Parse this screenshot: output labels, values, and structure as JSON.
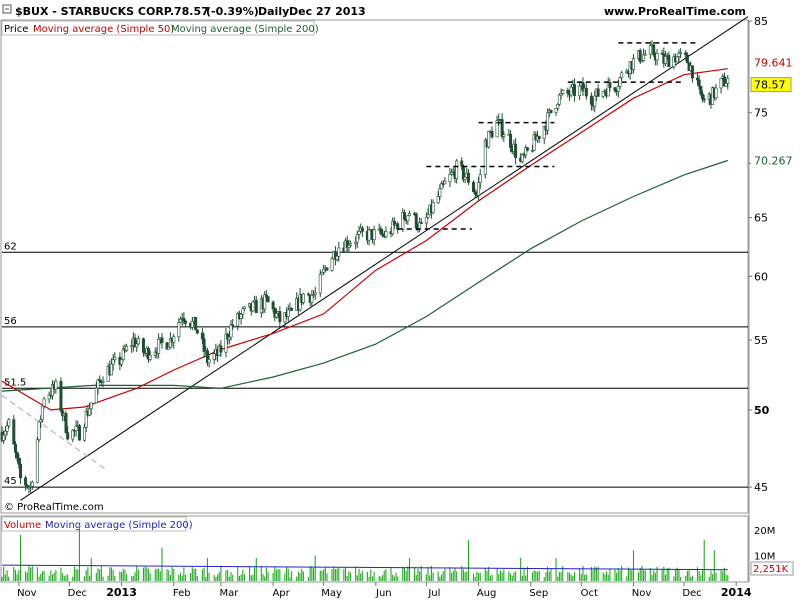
{
  "header": {
    "symbol": "$BUX - STARBUCKS CORP.",
    "last": "78.57",
    "change": "(-0.39%)",
    "period": "Daily",
    "date": "Dec 27 2013",
    "site": "www.ProRealTime.com",
    "copyright": "© ProRealTime.com"
  },
  "legend": {
    "price": "Price",
    "ma50": "Moving average (Simple 50)",
    "ma200": "Moving average (Simple 200)",
    "volume": "Volume",
    "vol_ma": "Moving average (Simple 200)"
  },
  "colors": {
    "ma50": "#cc0000",
    "ma200": "#1f5f35",
    "volume": "#22aa22",
    "vol_ma": "#2222cc",
    "candle_up": "#ffffff",
    "candle_down": "#1f4f2f"
  },
  "chart_data": {
    "type": "candlestick",
    "y_axis": {
      "scale": "log",
      "range": [
        43.5,
        85
      ],
      "ticks": [
        "85",
        "75",
        "70",
        "65",
        "60",
        "55",
        "50",
        "45"
      ],
      "tick_values": [
        85,
        75,
        70,
        65,
        60,
        55,
        50,
        45
      ]
    },
    "x_axis": {
      "labels": [
        "Nov",
        "Dec",
        "2013",
        "Feb",
        "Mar",
        "Apr",
        "May",
        "Jun",
        "Jul",
        "Aug",
        "Sep",
        "Oct",
        "Nov",
        "Dec",
        "2014"
      ],
      "dates": [
        "2012-11-01",
        "2012-12-01",
        "2013-01-01",
        "2013-02-01",
        "2013-03-01",
        "2013-04-01",
        "2013-05-01",
        "2013-06-01",
        "2013-07-01",
        "2013-08-01",
        "2013-09-01",
        "2013-10-01",
        "2013-11-01",
        "2013-12-01",
        "2014-01-01"
      ],
      "range": [
        "2012-10-22",
        "2014-01-08"
      ]
    },
    "price_path": [
      [
        "2012-10-22",
        48.5
      ],
      [
        "2012-10-26",
        49
      ],
      [
        "2012-11-02",
        45.5
      ],
      [
        "2012-11-08",
        45
      ],
      [
        "2012-11-16",
        51
      ],
      [
        "2012-11-23",
        51.5
      ],
      [
        "2012-11-30",
        48.5
      ],
      [
        "2012-12-07",
        48.5
      ],
      [
        "2012-12-14",
        50.5
      ],
      [
        "2012-12-21",
        52.5
      ],
      [
        "2012-12-31",
        53.5
      ],
      [
        "2013-01-08",
        55
      ],
      [
        "2013-01-15",
        54
      ],
      [
        "2013-01-22",
        54.5
      ],
      [
        "2013-01-30",
        55
      ],
      [
        "2013-02-06",
        57
      ],
      [
        "2013-02-14",
        56
      ],
      [
        "2013-02-21",
        53.5
      ],
      [
        "2013-02-28",
        54
      ],
      [
        "2013-03-07",
        56
      ],
      [
        "2013-03-14",
        57
      ],
      [
        "2013-03-21",
        57.5
      ],
      [
        "2013-03-28",
        58
      ],
      [
        "2013-04-05",
        56.5
      ],
      [
        "2013-04-12",
        57
      ],
      [
        "2013-04-19",
        58.5
      ],
      [
        "2013-04-26",
        58.5
      ],
      [
        "2013-05-03",
        61
      ],
      [
        "2013-05-10",
        62.5
      ],
      [
        "2013-05-17",
        63
      ],
      [
        "2013-05-24",
        63.5
      ],
      [
        "2013-05-31",
        63.5
      ],
      [
        "2013-06-07",
        63.5
      ],
      [
        "2013-06-14",
        64.5
      ],
      [
        "2013-06-21",
        65.5
      ],
      [
        "2013-06-28",
        64
      ],
      [
        "2013-07-05",
        66
      ],
      [
        "2013-07-12",
        68
      ],
      [
        "2013-07-19",
        69.5
      ],
      [
        "2013-07-26",
        68.5
      ],
      [
        "2013-07-31",
        67
      ],
      [
        "2013-08-05",
        72
      ],
      [
        "2013-08-12",
        74
      ],
      [
        "2013-08-19",
        72.5
      ],
      [
        "2013-08-26",
        70
      ],
      [
        "2013-09-03",
        72
      ],
      [
        "2013-09-10",
        74
      ],
      [
        "2013-09-17",
        76.5
      ],
      [
        "2013-09-24",
        77
      ],
      [
        "2013-10-01",
        77.5
      ],
      [
        "2013-10-08",
        76.5
      ],
      [
        "2013-10-15",
        77.5
      ],
      [
        "2013-10-22",
        78
      ],
      [
        "2013-10-29",
        80
      ],
      [
        "2013-11-05",
        81
      ],
      [
        "2013-11-12",
        81.5
      ],
      [
        "2013-11-19",
        80.5
      ],
      [
        "2013-11-26",
        81
      ],
      [
        "2013-12-03",
        80.5
      ],
      [
        "2013-12-06",
        79.5
      ],
      [
        "2013-12-10",
        77
      ],
      [
        "2013-12-13",
        76.2
      ],
      [
        "2013-12-18",
        76.8
      ],
      [
        "2013-12-23",
        78
      ],
      [
        "2013-12-27",
        78.57
      ]
    ],
    "series": [
      {
        "name": "Moving average (Simple 50)",
        "values": [
          [
            "2012-10-22",
            52
          ],
          [
            "2012-11-20",
            50
          ],
          [
            "2012-12-10",
            50.2
          ],
          [
            "2013-01-10",
            51.5
          ],
          [
            "2013-02-01",
            52.8
          ],
          [
            "2013-03-01",
            54.3
          ],
          [
            "2013-04-01",
            55.5
          ],
          [
            "2013-05-01",
            57
          ],
          [
            "2013-06-01",
            60.5
          ],
          [
            "2013-07-01",
            63
          ],
          [
            "2013-08-01",
            66.5
          ],
          [
            "2013-09-01",
            69.8
          ],
          [
            "2013-10-01",
            73
          ],
          [
            "2013-11-01",
            76.5
          ],
          [
            "2013-12-01",
            79
          ],
          [
            "2013-12-27",
            79.64
          ]
        ]
      },
      {
        "name": "Moving average (Simple 200)",
        "values": [
          [
            "2012-10-22",
            51.3
          ],
          [
            "2012-12-15",
            51.7
          ],
          [
            "2013-02-01",
            51.7
          ],
          [
            "2013-03-01",
            51.5
          ],
          [
            "2013-04-01",
            52.3
          ],
          [
            "2013-05-01",
            53.3
          ],
          [
            "2013-06-01",
            54.7
          ],
          [
            "2013-07-01",
            56.8
          ],
          [
            "2013-08-01",
            59.5
          ],
          [
            "2013-09-01",
            62.3
          ],
          [
            "2013-10-01",
            64.7
          ],
          [
            "2013-11-01",
            66.9
          ],
          [
            "2013-12-01",
            68.9
          ],
          [
            "2013-12-27",
            70.27
          ]
        ]
      }
    ],
    "value_labels": [
      {
        "text": "79.641",
        "value": 79.641,
        "series": "Moving average (Simple 50)"
      },
      {
        "text": "78.57",
        "value": 78.57,
        "series": "Price"
      },
      {
        "text": "70.267",
        "value": 70.267,
        "series": "Moving average (Simple 200)"
      }
    ],
    "horizontal_levels": [
      {
        "label": "62",
        "value": 62
      },
      {
        "label": "56",
        "value": 56
      },
      {
        "label": "51.5",
        "value": 51.5
      },
      {
        "label": "45",
        "value": 45
      }
    ],
    "trendlines": [
      {
        "from": [
          "2012-11-02",
          44.2
        ],
        "to": [
          "2014-01-08",
          85.5
        ],
        "style": "solid"
      },
      {
        "from": [
          "2012-10-22",
          51
        ],
        "to": [
          "2012-12-24",
          46
        ],
        "style": "dashed"
      }
    ],
    "dashed_levels": [
      {
        "from": "2013-06-14",
        "to": "2013-07-28",
        "value": 64
      },
      {
        "from": "2013-07-01",
        "to": "2013-09-15",
        "value": 69.7
      },
      {
        "from": "2013-08-01",
        "to": "2013-09-15",
        "value": 74
      },
      {
        "from": "2013-09-23",
        "to": "2013-11-30",
        "value": 78.2
      },
      {
        "from": "2013-10-23",
        "to": "2013-12-10",
        "value": 82.5
      }
    ],
    "volume": {
      "ticks": [
        "20M",
        "10M"
      ],
      "tick_values": [
        20,
        10
      ],
      "unit": "M",
      "range": [
        0,
        25
      ],
      "last_label": "2,251K",
      "last_value": 2.251,
      "ma200_level": 6.2,
      "spikes": [
        [
          "2012-11-02",
          18
        ],
        [
          "2012-12-07",
          22
        ],
        [
          "2012-12-14",
          9
        ],
        [
          "2013-01-25",
          13
        ],
        [
          "2013-02-21",
          9
        ],
        [
          "2013-03-22",
          9
        ],
        [
          "2013-04-26",
          10
        ],
        [
          "2013-06-21",
          9
        ],
        [
          "2013-07-26",
          16
        ],
        [
          "2013-08-26",
          9
        ],
        [
          "2013-09-16",
          9
        ],
        [
          "2013-11-01",
          12
        ],
        [
          "2013-12-13",
          16
        ],
        [
          "2013-12-19",
          12
        ],
        [
          "2013-12-27",
          2.251
        ]
      ]
    }
  }
}
